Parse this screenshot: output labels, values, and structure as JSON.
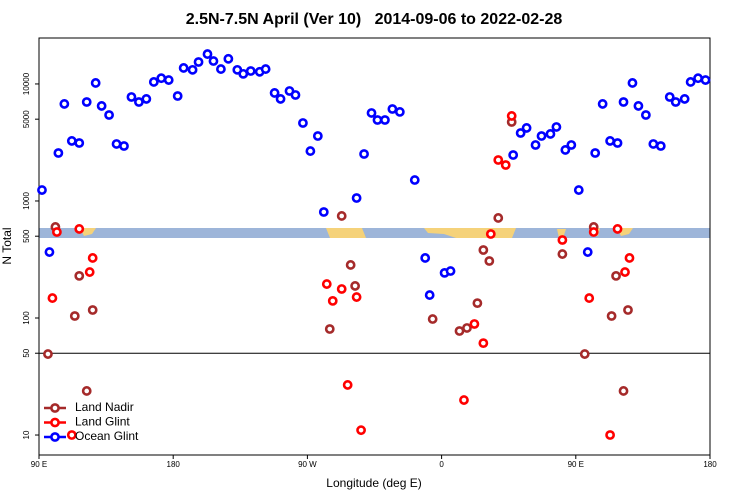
{
  "chart_data": {
    "type": "scatter",
    "title": "2.5N-7.5N April (Ver 10)   2014-09-06 to 2022-02-28",
    "x_label": "Longitude (deg E)",
    "y_label": "N Total",
    "xlim": [
      90,
      540
    ],
    "xticks": [
      {
        "value": 90,
        "label": "90 E"
      },
      180,
      {
        "value": 270,
        "label": "90 W"
      },
      {
        "value": 360,
        "label": "0"
      },
      {
        "value": 450,
        "label": "90 E"
      },
      {
        "value": 540,
        "label": "180"
      }
    ],
    "ylim": [
      6.75,
      24700
    ],
    "log_y": true,
    "yticks": [
      10,
      50,
      100,
      500,
      1000,
      5000,
      10000
    ],
    "hline": 50,
    "legend": "lower left",
    "series": [
      {
        "name": "Land Nadir",
        "color": "#a52a2a",
        "x": [
          96,
          101,
          117,
          122,
          126,
          114,
          285,
          293,
          299,
          302,
          354,
          372,
          377,
          384,
          388,
          392,
          398,
          407,
          441,
          456,
          462,
          477,
          482,
          485,
          474
        ],
        "values": [
          49.2,
          600,
          229,
          23.8,
          117,
          104,
          80.5,
          745,
          284,
          188,
          98,
          77.4,
          82.2,
          134,
          381,
          307,
          716,
          4730,
          352,
          49.2,
          600,
          229,
          23.8,
          117,
          104
        ]
      },
      {
        "name": "Land Glint",
        "color": "#ff0000",
        "x": [
          99,
          102,
          117,
          124,
          126,
          112,
          283,
          287,
          293,
          303,
          297,
          306,
          375,
          382,
          388,
          393,
          398,
          403,
          407,
          441,
          459,
          462,
          478,
          483,
          486,
          473
        ],
        "values": [
          148,
          543,
          577,
          247,
          326,
          10,
          195,
          140,
          177,
          151,
          26.8,
          11,
          19.9,
          88.9,
          61,
          522,
          2240,
          2030,
          5330,
          464,
          148,
          543,
          577,
          247,
          326,
          10
        ]
      },
      {
        "name": "Ocean Glint",
        "color": "#0000ff",
        "x": [
          92,
          97,
          103,
          107,
          112,
          117,
          122,
          128,
          132,
          137,
          142,
          147,
          152,
          157,
          162,
          167,
          172,
          177,
          183,
          187,
          193,
          197,
          203,
          207,
          212,
          217,
          223,
          227,
          232,
          238,
          242,
          248,
          252,
          258,
          262,
          267,
          272,
          277,
          281,
          303,
          308,
          313,
          317,
          322,
          327,
          332,
          342,
          349,
          352,
          362,
          366,
          408,
          413,
          417,
          423,
          427,
          433,
          437,
          443,
          447,
          452,
          458,
          463,
          468,
          473,
          478,
          482,
          488,
          492,
          497,
          502,
          507,
          513,
          517,
          523,
          527,
          532,
          537
        ],
        "values": [
          1240,
          366,
          2570,
          6750,
          3260,
          3130,
          7010,
          10200,
          6490,
          5430,
          3070,
          2950,
          7740,
          7010,
          7450,
          10400,
          11200,
          10800,
          7890,
          13700,
          13200,
          15400,
          18000,
          15700,
          13400,
          16400,
          13200,
          12200,
          12900,
          12700,
          13400,
          8380,
          7450,
          8710,
          8050,
          4640,
          2670,
          3590,
          805,
          1060,
          2520,
          5650,
          4920,
          4920,
          6110,
          5770,
          1510,
          326,
          157,
          243,
          252,
          2470,
          3810,
          4210,
          3010,
          3590,
          3740,
          4290,
          2730,
          3010,
          1240,
          366,
          2570,
          6750,
          3260,
          3130,
          7010,
          10200,
          6490,
          5430,
          3070,
          2950,
          7740,
          7010,
          7450,
          10400,
          11200,
          10800
        ]
      }
    ]
  }
}
